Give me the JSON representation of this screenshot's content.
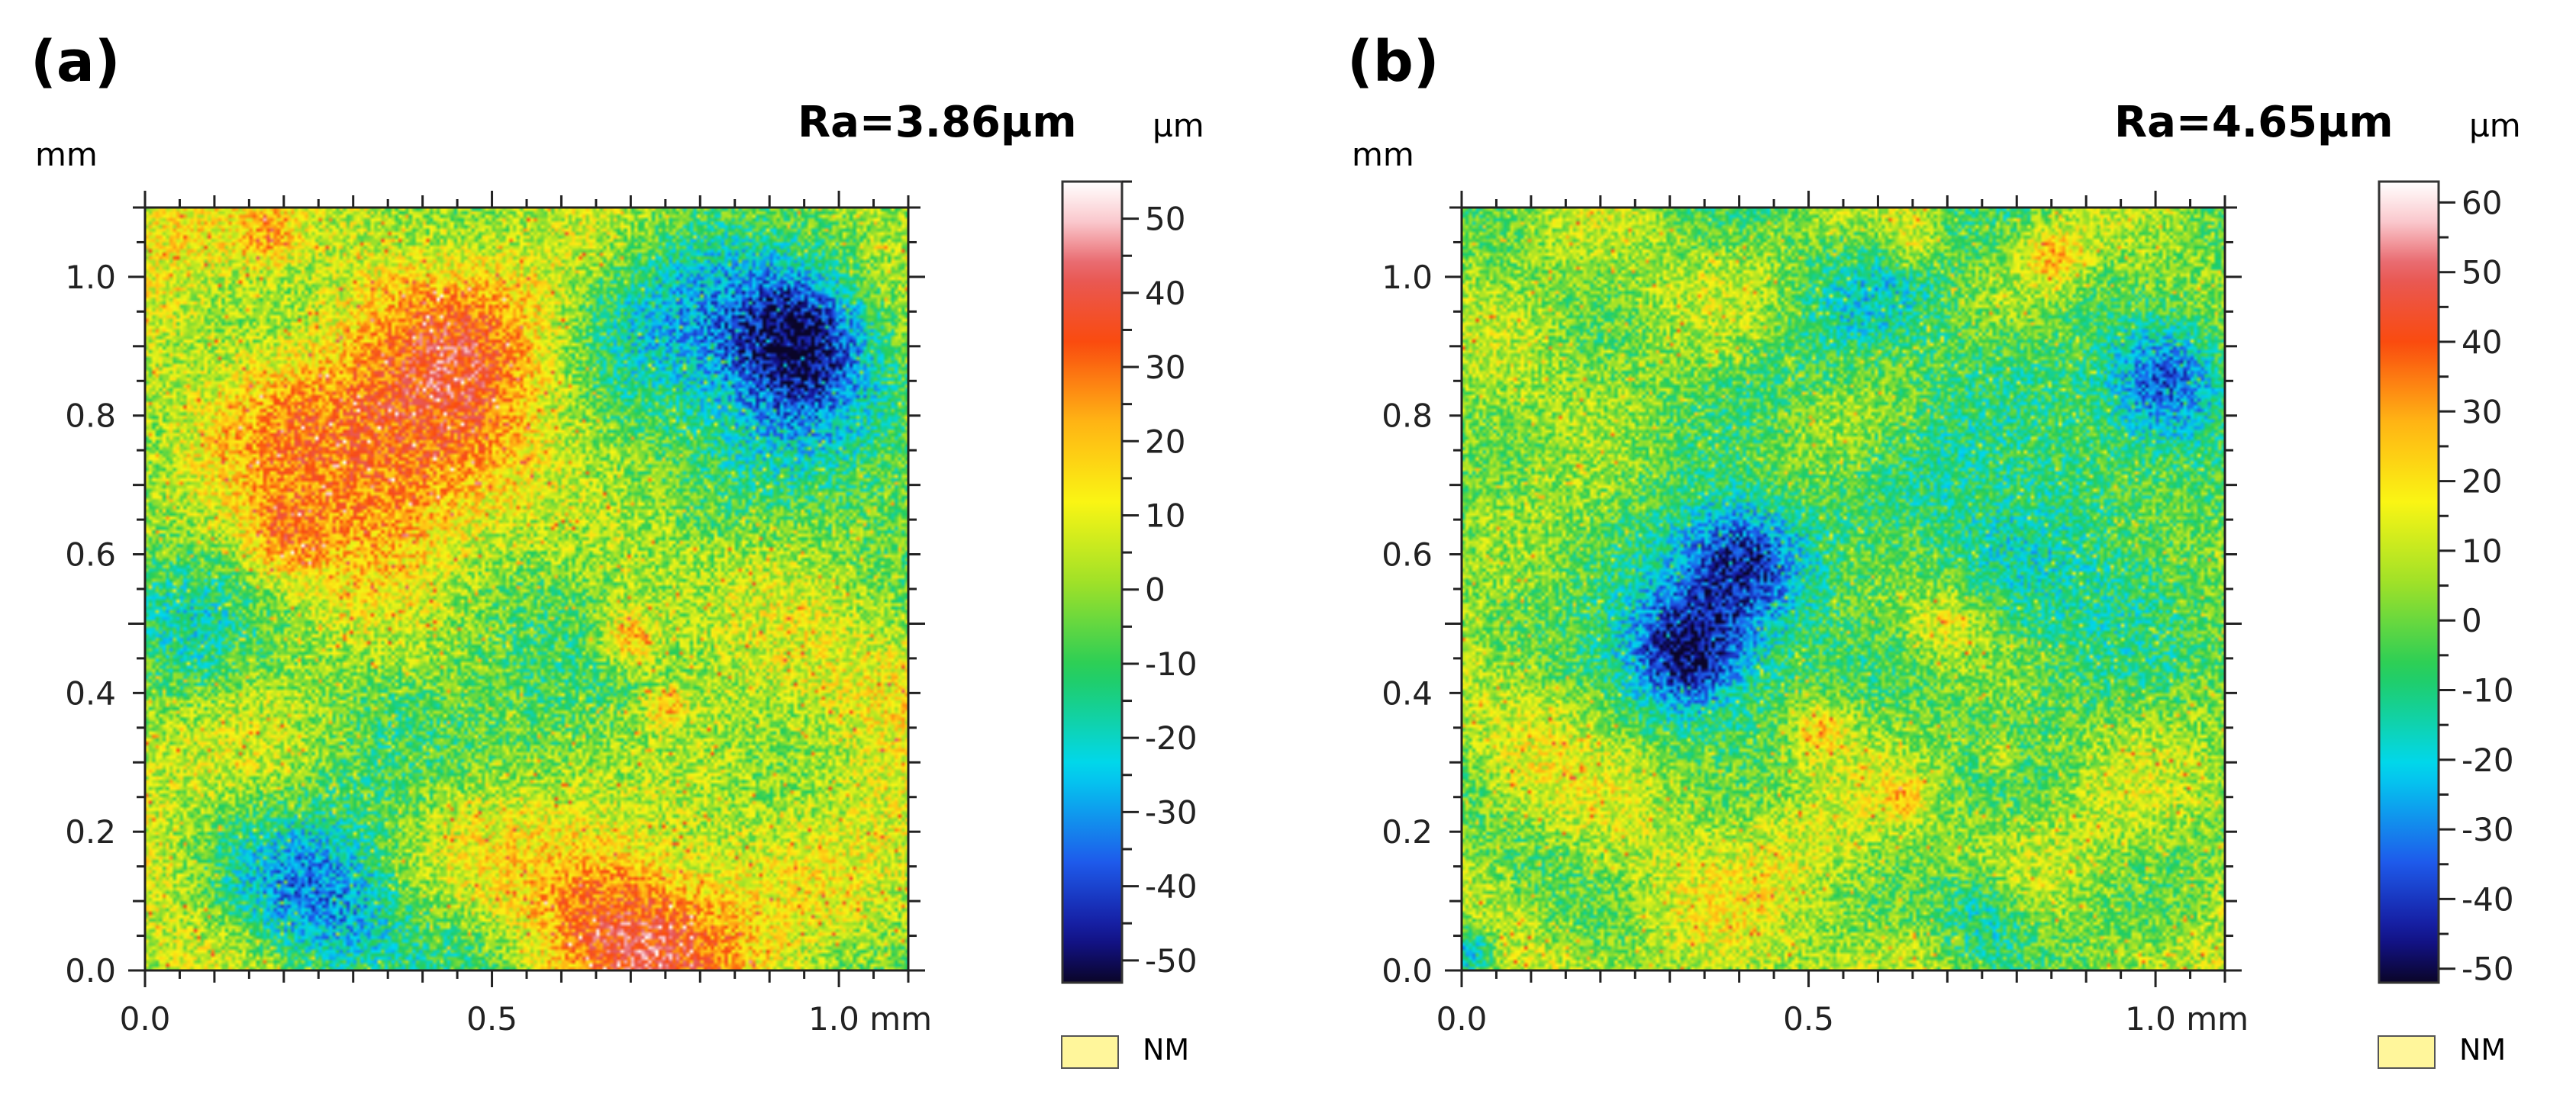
{
  "chart_data": [
    {
      "type": "heatmap",
      "panel_label": "(a)",
      "annotation": "Ra=3.86µm",
      "x_unit": "mm",
      "y_unit": "mm",
      "xlim": [
        0.0,
        1.1
      ],
      "ylim": [
        0.0,
        1.1
      ],
      "x_ticks": [
        0.0,
        0.5,
        1.0
      ],
      "x_tick_labels": [
        "0.0",
        "0.5",
        "1.0 mm"
      ],
      "y_ticks": [
        0.0,
        0.2,
        0.4,
        0.6,
        0.8,
        1.0
      ],
      "y_tick_labels": [
        "0.0",
        "0.2",
        "0.4",
        "0.6",
        "0.8",
        "1.0"
      ],
      "colorbar": {
        "unit": "µm",
        "range": [
          -53,
          55
        ],
        "ticks": [
          50,
          40,
          30,
          20,
          10,
          0,
          -10,
          -20,
          -30,
          -40,
          -50
        ],
        "tick_labels": [
          "50",
          "40",
          "30",
          "20",
          "10",
          "0",
          "-10",
          "-20",
          "-30",
          "-40",
          "-50"
        ],
        "not_measured_label": "NM"
      },
      "hotspots": [
        {
          "x": 0.45,
          "y": 0.81,
          "value": 30,
          "spread": 0.12
        },
        {
          "x": 0.38,
          "y": 0.75,
          "value": 20,
          "spread": 0.17
        },
        {
          "x": 0.75,
          "y": 0.06,
          "value": 30,
          "spread": 0.1
        },
        {
          "x": 0.64,
          "y": 0.1,
          "value": 20,
          "spread": 0.1
        },
        {
          "x": 0.2,
          "y": 0.62,
          "value": 25,
          "spread": 0.04
        },
        {
          "x": 0.7,
          "y": 0.48,
          "value": 32,
          "spread": 0.03
        },
        {
          "x": 0.75,
          "y": 0.38,
          "value": 28,
          "spread": 0.02
        },
        {
          "x": 0.18,
          "y": 1.06,
          "value": 22,
          "spread": 0.03
        },
        {
          "x": 0.9,
          "y": 0.5,
          "value": 10,
          "spread": 0.15
        },
        {
          "x": 0.15,
          "y": 0.9,
          "value": 6,
          "spread": 0.15
        },
        {
          "x": 0.95,
          "y": 0.92,
          "value": -40,
          "spread": 0.07
        },
        {
          "x": 0.9,
          "y": 0.8,
          "value": -22,
          "spread": 0.13
        },
        {
          "x": 0.27,
          "y": 0.08,
          "value": -35,
          "spread": 0.09
        },
        {
          "x": 0.55,
          "y": 0.42,
          "value": -15,
          "spread": 0.15
        },
        {
          "x": 0.05,
          "y": 0.5,
          "value": -20,
          "spread": 0.08
        },
        {
          "x": 0.75,
          "y": 0.9,
          "value": -15,
          "spread": 0.15
        }
      ]
    },
    {
      "type": "heatmap",
      "panel_label": "(b)",
      "annotation": "Ra=4.65µm",
      "x_unit": "mm",
      "y_unit": "mm",
      "xlim": [
        0.0,
        1.1
      ],
      "ylim": [
        0.0,
        1.1
      ],
      "x_ticks": [
        0.0,
        0.5,
        1.0
      ],
      "x_tick_labels": [
        "0.0",
        "0.5",
        "1.0 mm"
      ],
      "y_ticks": [
        0.0,
        0.2,
        0.4,
        0.6,
        0.8,
        1.0
      ],
      "y_tick_labels": [
        "0.0",
        "0.2",
        "0.4",
        "0.6",
        "0.8",
        "1.0"
      ],
      "colorbar": {
        "unit": "µm",
        "range": [
          -52,
          63
        ],
        "ticks": [
          60,
          50,
          40,
          30,
          20,
          10,
          0,
          -10,
          -20,
          -30,
          -40,
          -50
        ],
        "tick_labels": [
          "60",
          "50",
          "40",
          "30",
          "20",
          "10",
          "0",
          "-10",
          "-20",
          "-30",
          "-40",
          "-50"
        ],
        "not_measured_label": "NM"
      },
      "hotspots": [
        {
          "x": 0.32,
          "y": 0.45,
          "value": -38,
          "spread": 0.06
        },
        {
          "x": 0.4,
          "y": 0.6,
          "value": -30,
          "spread": 0.06
        },
        {
          "x": 0.36,
          "y": 0.52,
          "value": -22,
          "spread": 0.12
        },
        {
          "x": 1.02,
          "y": 0.85,
          "value": -35,
          "spread": 0.06
        },
        {
          "x": 0.75,
          "y": 0.08,
          "value": -25,
          "spread": 0.05
        },
        {
          "x": 0.01,
          "y": 0.03,
          "value": -30,
          "spread": 0.03
        },
        {
          "x": 0.85,
          "y": 0.6,
          "value": -15,
          "spread": 0.15
        },
        {
          "x": 0.62,
          "y": 0.88,
          "value": -12,
          "spread": 0.14
        },
        {
          "x": 0.85,
          "y": 1.03,
          "value": 28,
          "spread": 0.03
        },
        {
          "x": 0.65,
          "y": 1.05,
          "value": 25,
          "spread": 0.03
        },
        {
          "x": 0.7,
          "y": 0.5,
          "value": 22,
          "spread": 0.04
        },
        {
          "x": 0.52,
          "y": 0.35,
          "value": 28,
          "spread": 0.03
        },
        {
          "x": 0.78,
          "y": 0.31,
          "value": 22,
          "spread": 0.02
        },
        {
          "x": 0.64,
          "y": 0.25,
          "value": 25,
          "spread": 0.02
        },
        {
          "x": 0.45,
          "y": 0.1,
          "value": 12,
          "spread": 0.15
        },
        {
          "x": 0.15,
          "y": 0.3,
          "value": 10,
          "spread": 0.12
        },
        {
          "x": 0.55,
          "y": 0.75,
          "value": 10,
          "spread": 0.1
        },
        {
          "x": 0.95,
          "y": 0.15,
          "value": 8,
          "spread": 0.1
        },
        {
          "x": 0.12,
          "y": 0.95,
          "value": 6,
          "spread": 0.12
        }
      ]
    }
  ]
}
